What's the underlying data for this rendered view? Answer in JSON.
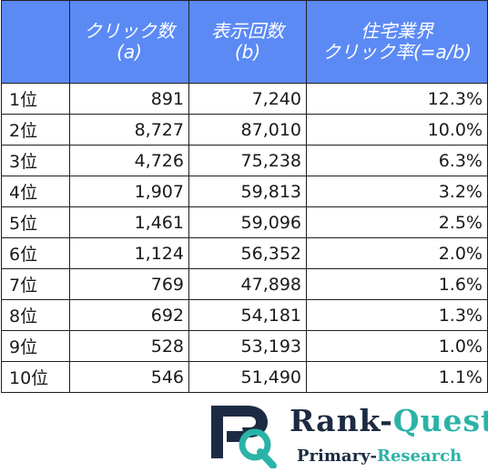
{
  "table": {
    "headers": [
      {
        "line1": "",
        "line2": ""
      },
      {
        "line1": "クリック数",
        "line2": "(a)"
      },
      {
        "line1": "表示回数",
        "line2": "(b)"
      },
      {
        "line1": "住宅業界",
        "line2": "クリック率(=a/b)"
      }
    ],
    "rows": [
      {
        "rank": "1位",
        "clicks": "891",
        "impressions": "7,240",
        "ctr": "12.3%"
      },
      {
        "rank": "2位",
        "clicks": "8,727",
        "impressions": "87,010",
        "ctr": "10.0%"
      },
      {
        "rank": "3位",
        "clicks": "4,726",
        "impressions": "75,238",
        "ctr": "6.3%"
      },
      {
        "rank": "4位",
        "clicks": "1,907",
        "impressions": "59,813",
        "ctr": "3.2%"
      },
      {
        "rank": "5位",
        "clicks": "1,461",
        "impressions": "59,096",
        "ctr": "2.5%"
      },
      {
        "rank": "6位",
        "clicks": "1,124",
        "impressions": "56,352",
        "ctr": "2.0%"
      },
      {
        "rank": "7位",
        "clicks": "769",
        "impressions": "47,898",
        "ctr": "1.6%"
      },
      {
        "rank": "8位",
        "clicks": "692",
        "impressions": "54,181",
        "ctr": "1.3%"
      },
      {
        "rank": "9位",
        "clicks": "528",
        "impressions": "53,193",
        "ctr": "1.0%"
      },
      {
        "rank": "10位",
        "clicks": "546",
        "impressions": "51,490",
        "ctr": "1.1%"
      }
    ]
  },
  "logo": {
    "brand_left": "Rank-",
    "brand_right": "Quest",
    "sub_left": "Primary-",
    "sub_right": "Research",
    "colors": {
      "navy": "#1c2b42",
      "teal": "#2bb3a8"
    }
  },
  "colors": {
    "header_bg": "#5b8af5",
    "header_text": "#ffffff",
    "border": "#1f1f1f"
  }
}
